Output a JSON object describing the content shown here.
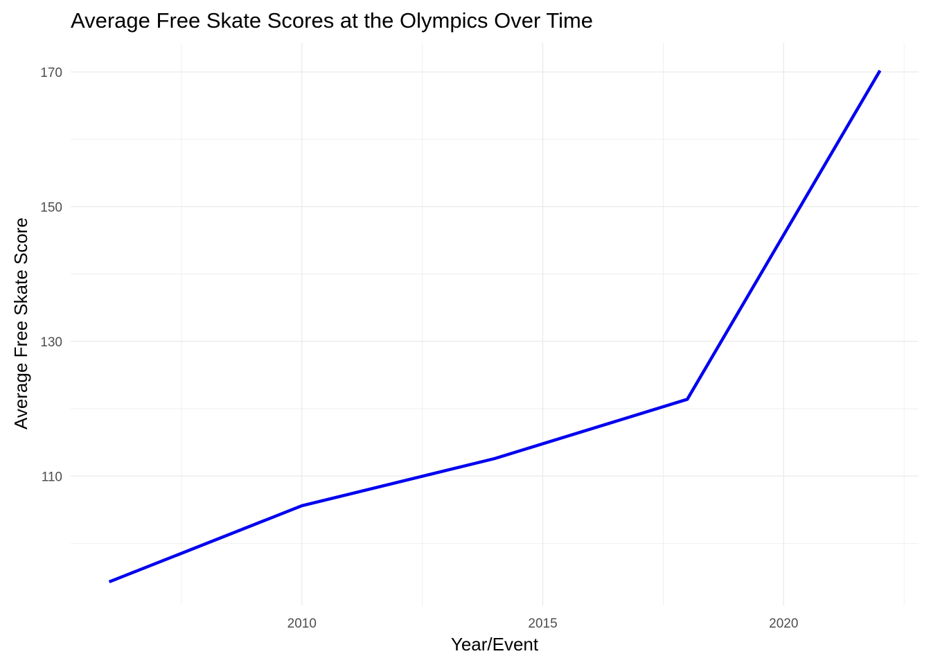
{
  "chart_data": {
    "type": "line",
    "title": "Average Free Skate Scores at the Olympics Over Time",
    "xlabel": "Year/Event",
    "ylabel": "Average Free Skate Score",
    "x": [
      2006,
      2010,
      2014,
      2018,
      2022
    ],
    "series": [
      {
        "values": [
          94.3,
          105.6,
          112.6,
          121.4,
          170.2
        ],
        "color": "#0000ee"
      }
    ],
    "xlim": [
      2005.2,
      2022.8
    ],
    "ylim": [
      90.8,
      174.3
    ],
    "x_major_ticks": [
      2010,
      2015,
      2020
    ],
    "x_tick_labels": [
      "2010",
      "2015",
      "2020"
    ],
    "x_minor_ticks": [
      2007.5,
      2012.5,
      2017.5,
      2022.5
    ],
    "y_major_ticks": [
      110,
      130,
      150,
      170
    ],
    "y_tick_labels": [
      "110",
      "130",
      "150",
      "170"
    ],
    "y_minor_ticks": [
      100,
      120,
      140,
      160
    ],
    "grid": true,
    "legend": "none",
    "background": "#ffffff"
  }
}
